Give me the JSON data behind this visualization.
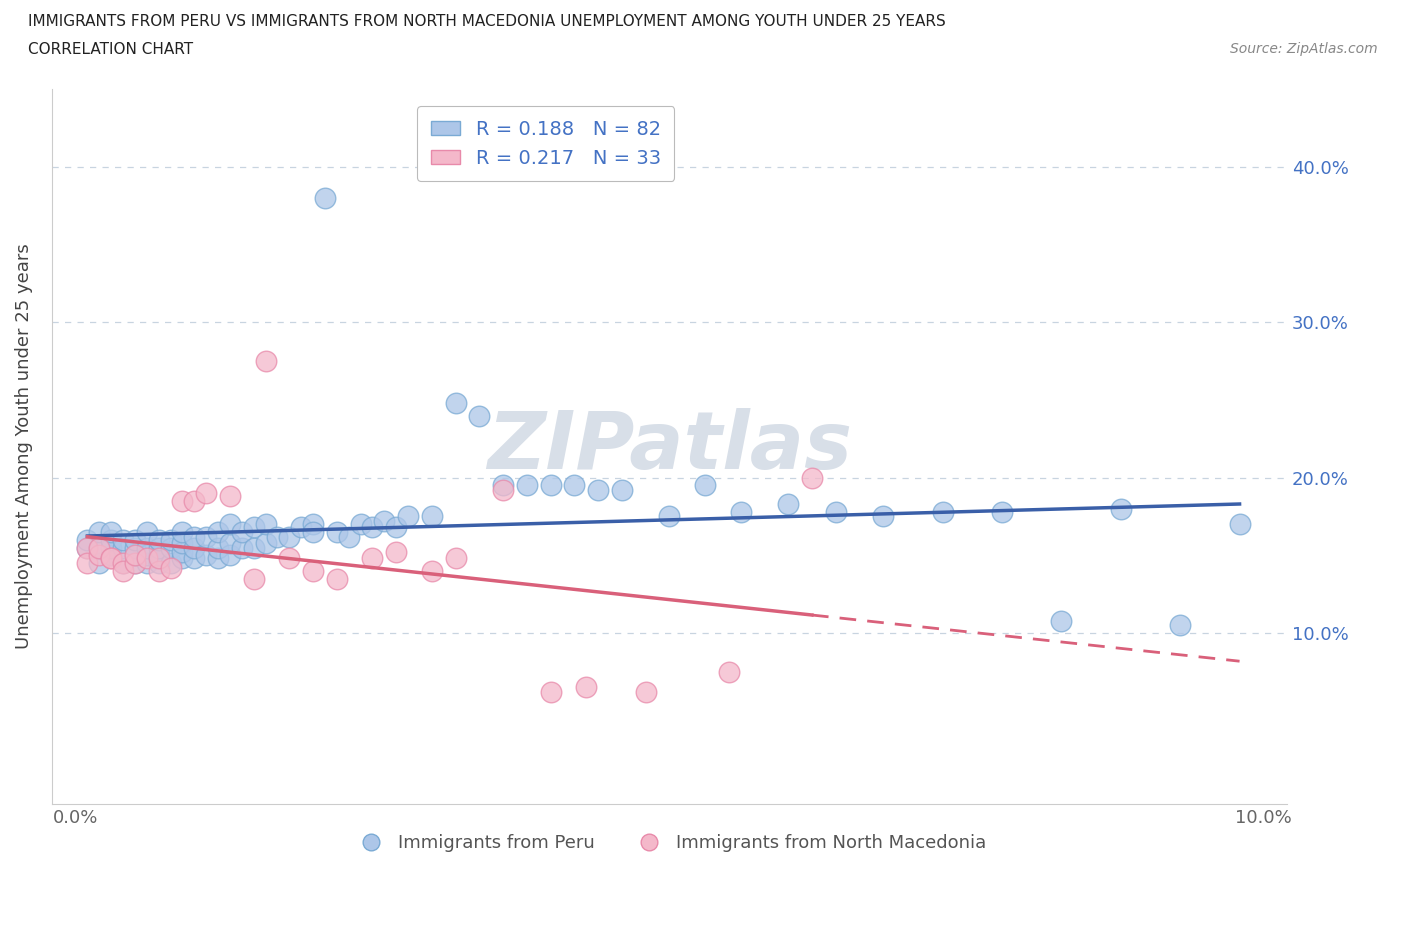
{
  "title_line1": "IMMIGRANTS FROM PERU VS IMMIGRANTS FROM NORTH MACEDONIA UNEMPLOYMENT AMONG YOUTH UNDER 25 YEARS",
  "title_line2": "CORRELATION CHART",
  "source": "Source: ZipAtlas.com",
  "ylabel": "Unemployment Among Youth under 25 years",
  "xlim": [
    -0.002,
    0.102
  ],
  "ylim": [
    -0.01,
    0.45
  ],
  "xticks": [
    0.0,
    0.02,
    0.04,
    0.06,
    0.08,
    0.1
  ],
  "xticklabels": [
    "0.0%",
    "",
    "",
    "",
    "",
    "10.0%"
  ],
  "yticks": [
    0.0,
    0.1,
    0.2,
    0.3,
    0.4
  ],
  "yticklabels_right": [
    "",
    "10.0%",
    "20.0%",
    "30.0%",
    "40.0%"
  ],
  "peru_R": 0.188,
  "peru_N": 82,
  "macedonia_R": 0.217,
  "macedonia_N": 33,
  "peru_color": "#adc6e8",
  "peru_edge_color": "#7aaad4",
  "macedonia_color": "#f4b8ca",
  "macedonia_edge_color": "#e88aaa",
  "peru_line_color": "#3a5fa8",
  "macedonia_line_color": "#d9607a",
  "watermark_color": "#d8dfe8",
  "legend_peru": "Immigrants from Peru",
  "legend_macedonia": "Immigrants from North Macedonia",
  "background_color": "#ffffff",
  "grid_color": "#c8d4e0",
  "tick_label_color": "#4472c4",
  "peru_x": [
    0.001,
    0.001,
    0.002,
    0.002,
    0.002,
    0.003,
    0.003,
    0.003,
    0.003,
    0.004,
    0.004,
    0.004,
    0.005,
    0.005,
    0.005,
    0.005,
    0.006,
    0.006,
    0.006,
    0.006,
    0.007,
    0.007,
    0.007,
    0.007,
    0.008,
    0.008,
    0.008,
    0.009,
    0.009,
    0.009,
    0.009,
    0.01,
    0.01,
    0.01,
    0.011,
    0.011,
    0.012,
    0.012,
    0.012,
    0.013,
    0.013,
    0.013,
    0.014,
    0.014,
    0.015,
    0.015,
    0.016,
    0.016,
    0.017,
    0.018,
    0.019,
    0.02,
    0.02,
    0.021,
    0.022,
    0.023,
    0.024,
    0.025,
    0.026,
    0.027,
    0.028,
    0.03,
    0.032,
    0.034,
    0.036,
    0.038,
    0.04,
    0.042,
    0.044,
    0.046,
    0.05,
    0.053,
    0.056,
    0.06,
    0.064,
    0.068,
    0.073,
    0.078,
    0.083,
    0.088,
    0.093,
    0.098
  ],
  "peru_y": [
    0.155,
    0.16,
    0.145,
    0.155,
    0.165,
    0.15,
    0.155,
    0.16,
    0.165,
    0.145,
    0.155,
    0.16,
    0.145,
    0.15,
    0.155,
    0.16,
    0.145,
    0.15,
    0.155,
    0.165,
    0.145,
    0.15,
    0.155,
    0.16,
    0.145,
    0.155,
    0.16,
    0.148,
    0.152,
    0.158,
    0.165,
    0.148,
    0.155,
    0.162,
    0.15,
    0.162,
    0.148,
    0.155,
    0.165,
    0.15,
    0.158,
    0.17,
    0.155,
    0.165,
    0.155,
    0.168,
    0.158,
    0.17,
    0.162,
    0.162,
    0.168,
    0.17,
    0.165,
    0.38,
    0.165,
    0.162,
    0.17,
    0.168,
    0.172,
    0.168,
    0.175,
    0.175,
    0.248,
    0.24,
    0.195,
    0.195,
    0.195,
    0.195,
    0.192,
    0.192,
    0.175,
    0.195,
    0.178,
    0.183,
    0.178,
    0.175,
    0.178,
    0.178,
    0.108,
    0.18,
    0.105,
    0.17
  ],
  "mac_x": [
    0.001,
    0.001,
    0.002,
    0.002,
    0.003,
    0.003,
    0.004,
    0.004,
    0.005,
    0.005,
    0.006,
    0.007,
    0.007,
    0.008,
    0.009,
    0.01,
    0.011,
    0.013,
    0.015,
    0.016,
    0.018,
    0.02,
    0.022,
    0.025,
    0.027,
    0.03,
    0.032,
    0.036,
    0.04,
    0.043,
    0.048,
    0.055,
    0.062
  ],
  "mac_y": [
    0.155,
    0.145,
    0.15,
    0.155,
    0.148,
    0.148,
    0.145,
    0.14,
    0.145,
    0.15,
    0.148,
    0.14,
    0.148,
    0.142,
    0.185,
    0.185,
    0.19,
    0.188,
    0.135,
    0.275,
    0.148,
    0.14,
    0.135,
    0.148,
    0.152,
    0.14,
    0.148,
    0.192,
    0.062,
    0.065,
    0.062,
    0.075,
    0.2
  ]
}
